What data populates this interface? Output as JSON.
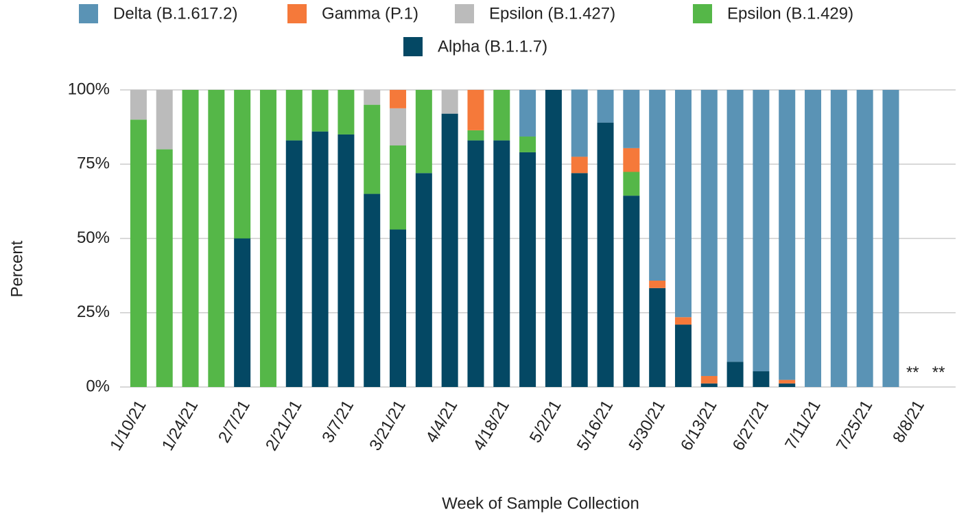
{
  "chart_data": {
    "type": "stacked_bar",
    "x_label": "Week of Sample Collection",
    "y_label": "Percent",
    "categories": [
      "1/10/21",
      null,
      "1/24/21",
      null,
      "2/7/21",
      null,
      "2/21/21",
      null,
      "3/7/21",
      null,
      "3/21/21",
      null,
      "4/4/21",
      null,
      "4/18/21",
      null,
      "5/2/21",
      null,
      "5/16/21",
      null,
      "5/30/21",
      null,
      "6/13/21",
      null,
      "6/27/21",
      null,
      "7/11/21",
      null,
      "7/25/21",
      null,
      "8/8/21",
      null
    ],
    "series": [
      {
        "name": "Delta (B.1.617.2)",
        "color": "#5a93b5",
        "values": [
          0,
          0,
          0,
          0,
          0,
          0,
          0,
          0,
          0,
          0,
          0,
          0,
          0,
          0,
          0,
          15.7,
          0,
          22.6,
          11,
          19.6,
          64.2,
          76.5,
          96.3,
          91.5,
          94.7,
          97.6,
          100,
          100,
          100,
          100,
          null,
          null
        ]
      },
      {
        "name": "Gamma (P.1)",
        "color": "#f5793a",
        "values": [
          0,
          0,
          0,
          0,
          0,
          0,
          0,
          0,
          0,
          0,
          6.2,
          0,
          0,
          13.6,
          0,
          0,
          0,
          5.5,
          0,
          8,
          2.5,
          2.5,
          2.5,
          0,
          0,
          1.2,
          0,
          0,
          0,
          0,
          null,
          null
        ]
      },
      {
        "name": "Epsilon (B.1.427)",
        "color": "#bbbbbb",
        "values": [
          10,
          20,
          0,
          0,
          0,
          0,
          0,
          0,
          0,
          5,
          12.5,
          0,
          8,
          0,
          0,
          0,
          0,
          0,
          0,
          0,
          0,
          0,
          0,
          0,
          0,
          0,
          0,
          0,
          0,
          0,
          null,
          null
        ]
      },
      {
        "name": "Epsilon (B.1.429)",
        "color": "#55b748",
        "values": [
          90,
          80,
          100,
          100,
          50,
          100,
          17,
          14,
          15,
          30,
          28.3,
          28,
          0,
          3.4,
          17,
          5.3,
          0,
          0,
          0,
          8,
          0,
          0,
          0,
          0,
          0,
          0,
          0,
          0,
          0,
          0,
          null,
          null
        ]
      },
      {
        "name": "Alpha (B.1.1.7)",
        "color": "#044864",
        "values": [
          0,
          0,
          0,
          0,
          50,
          0,
          83,
          86,
          85,
          65,
          53,
          72,
          92,
          83,
          83,
          79,
          100,
          72,
          89,
          64.4,
          33.3,
          21,
          1.2,
          8.5,
          5.3,
          1.2,
          0,
          0,
          0,
          0,
          null,
          null
        ]
      }
    ],
    "bar_notes": [
      null,
      null,
      null,
      null,
      null,
      null,
      null,
      null,
      null,
      null,
      null,
      null,
      null,
      null,
      null,
      null,
      null,
      null,
      null,
      null,
      null,
      null,
      null,
      null,
      null,
      null,
      null,
      null,
      null,
      null,
      "**",
      "**"
    ],
    "ylim": [
      0,
      100
    ],
    "yticks": [
      {
        "value": 0,
        "label": "0%"
      },
      {
        "value": 25,
        "label": "25%"
      },
      {
        "value": 50,
        "label": "50%"
      },
      {
        "value": 75,
        "label": "75%"
      },
      {
        "value": 100,
        "label": "100%"
      }
    ],
    "grid": true
  }
}
